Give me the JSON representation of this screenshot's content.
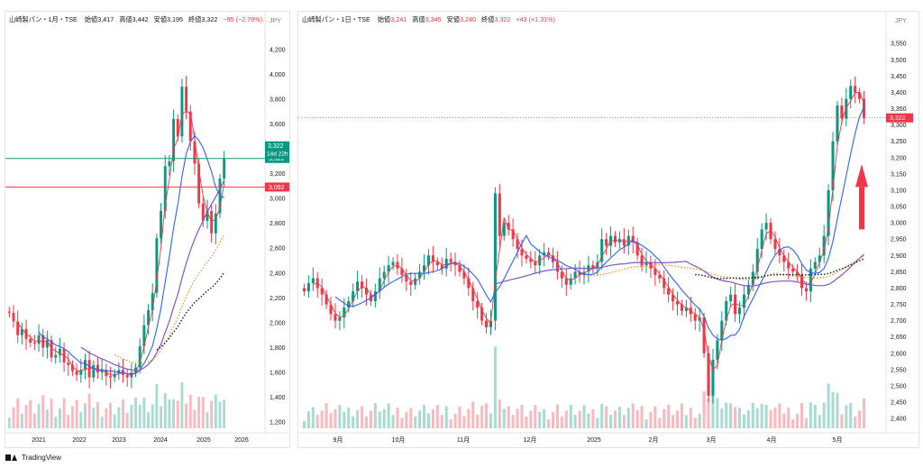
{
  "app": {
    "brand": "TradingView"
  },
  "charts": [
    {
      "id": "left",
      "symbol": "山崎製パン・1月・TSE",
      "open_label": "始値",
      "open": "3,417",
      "high_label": "高値",
      "high": "3,442",
      "low_label": "安値",
      "low": "3,195",
      "close_label": "終値",
      "close": "3,322",
      "change": "−95 (−2.78%)...",
      "currency": "JPY",
      "y_ticks": [
        "4,200",
        "4,000",
        "3,800",
        "3,600",
        "3,200",
        "3,000",
        "2,800",
        "2,600",
        "2,400",
        "2,200",
        "2,000",
        "1,800",
        "1,600",
        "1,400",
        "1,200"
      ],
      "x_ticks": [
        "2021",
        "2022",
        "2023",
        "2024",
        "2025",
        "2026"
      ],
      "price_tag": {
        "value": "3,322",
        "countdown": "14d 22h"
      },
      "lines": [
        {
          "label": "3,322",
          "value": 3322,
          "color": "#089981"
        },
        {
          "label": "3,092",
          "value": 3092,
          "color": "#f23645"
        }
      ]
    },
    {
      "id": "right",
      "symbol": "山崎製パン・1日・TSE",
      "open_label": "始値",
      "open": "3,241",
      "high_label": "高値",
      "high": "3,345",
      "low_label": "安値",
      "low": "3,240",
      "close_label": "終値",
      "close": "3,322",
      "change": "+43 (+1.31%)",
      "currency": "JPY",
      "y_ticks": [
        "3,550",
        "3,500",
        "3,450",
        "3,400",
        "3,350",
        "3,300",
        "3,250",
        "3,200",
        "3,150",
        "3,100",
        "3,050",
        "3,000",
        "2,950",
        "2,900",
        "2,850",
        "2,800",
        "2,750",
        "2,700",
        "2,650",
        "2,600",
        "2,550",
        "2,500",
        "2,450",
        "2,400"
      ],
      "x_ticks": [
        "9月",
        "10月",
        "11月",
        "12月",
        "2025",
        "2月",
        "3月",
        "4月",
        "5月"
      ],
      "price_tag": {
        "value": "3,322"
      }
    }
  ],
  "chart_data": [
    {
      "type": "candlestick",
      "title": "山崎製パン・1月・TSE",
      "interval": "monthly",
      "ylim": [
        1150,
        4300
      ],
      "x_range": [
        "2020-09",
        "2026-06"
      ],
      "last_close": 3322,
      "horizontal_lines": [
        3322,
        3092
      ],
      "closes_approx": [
        2080,
        2010,
        1900,
        1950,
        1870,
        1840,
        1830,
        1900,
        1800,
        1860,
        1720,
        1740,
        1790,
        1680,
        1660,
        1610,
        1580,
        1620,
        1700,
        1560,
        1660,
        1600,
        1620,
        1570,
        1560,
        1590,
        1620,
        1580,
        1560,
        1600,
        1640,
        1810,
        1980,
        2100,
        2240,
        2680,
        2900,
        3260,
        3300,
        3640,
        3500,
        3900,
        3700,
        3460,
        3280,
        2960,
        2820,
        2900,
        2720,
        2880,
        3160,
        3320
      ],
      "overlays": [
        "SMA fast (blue)",
        "SMA mid (red)",
        "SMA slow (purple)",
        "SMA orange (dotted)",
        "SMA black (dotted)"
      ],
      "volume": "shown"
    },
    {
      "type": "candlestick",
      "title": "山崎製パン・1日・TSE",
      "interval": "daily",
      "ylim": [
        2370,
        3570
      ],
      "x_range": [
        "2024-08",
        "2025-05"
      ],
      "last_close": 3322,
      "day_high": 3345,
      "day_low": 3240,
      "closes_approx": [
        2790,
        2815,
        2830,
        2800,
        2780,
        2750,
        2720,
        2700,
        2710,
        2740,
        2760,
        2790,
        2820,
        2800,
        2780,
        2760,
        2790,
        2830,
        2850,
        2870,
        2880,
        2860,
        2840,
        2820,
        2810,
        2830,
        2850,
        2870,
        2900,
        2880,
        2870,
        2860,
        2890,
        2880,
        2870,
        2850,
        2830,
        2800,
        2760,
        2740,
        2700,
        2680,
        2700,
        3090,
        2960,
        3000,
        2980,
        2950,
        2920,
        2900,
        2890,
        2880,
        2870,
        2900,
        2910,
        2900,
        2880,
        2850,
        2830,
        2810,
        2830,
        2850,
        2840,
        2850,
        2870,
        2860,
        2880,
        2950,
        2930,
        2960,
        2940,
        2950,
        2930,
        2960,
        2940,
        2900,
        2870,
        2880,
        2860,
        2840,
        2830,
        2800,
        2780,
        2760,
        2750,
        2730,
        2740,
        2720,
        2700,
        2710,
        2600,
        2470,
        2580,
        2640,
        2700,
        2760,
        2780,
        2720,
        2740,
        2780,
        2810,
        2850,
        2920,
        2980,
        3000,
        2950,
        2920,
        2900,
        2880,
        2860,
        2850,
        2840,
        2800,
        2790,
        2860,
        2880,
        2900,
        2960,
        3100,
        3250,
        3360,
        3320,
        3380,
        3420,
        3400,
        3380,
        3322
      ],
      "overlays": [
        "SMA fast (blue)",
        "SMA mid (red)",
        "SMA slow (purple)",
        "SMA orange (dotted)",
        "SMA black (dotted)"
      ],
      "annotation": "red up arrow near last price",
      "volume": "shown"
    }
  ]
}
